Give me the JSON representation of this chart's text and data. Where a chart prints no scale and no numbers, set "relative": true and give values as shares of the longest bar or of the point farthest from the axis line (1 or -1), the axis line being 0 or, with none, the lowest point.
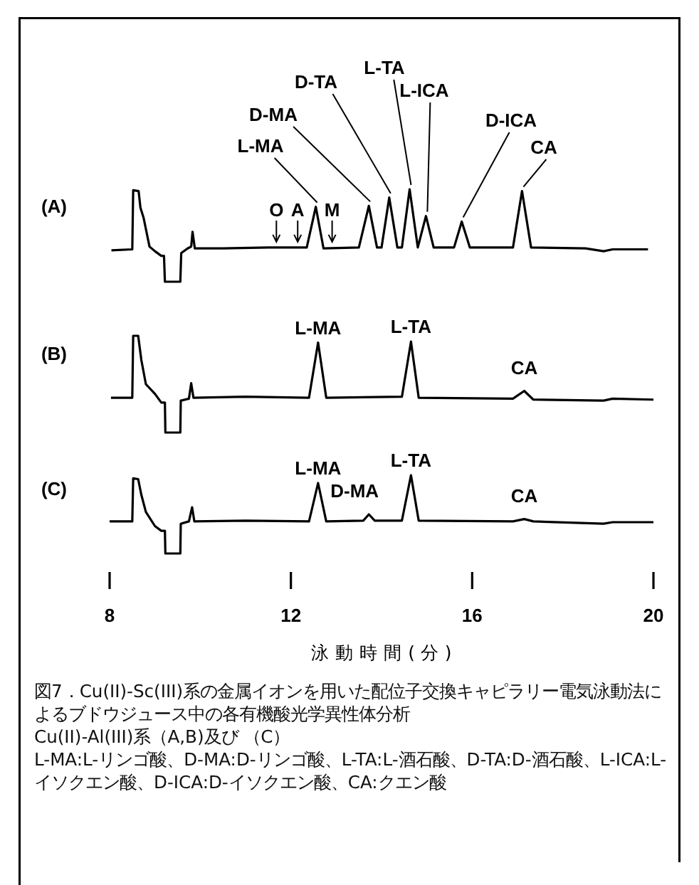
{
  "chart_data": [
    {
      "type": "line",
      "relative": true,
      "title": "(A)",
      "xlim": [
        8,
        20
      ],
      "tick_labels": false,
      "color": "#000000",
      "x": [
        8.04,
        8.5,
        8.52,
        8.64,
        8.68,
        8.75,
        8.88,
        9.0,
        9.14,
        9.2,
        9.22,
        9.56,
        9.58,
        9.72,
        9.8,
        9.83,
        9.88,
        10.5,
        11.5,
        12.35,
        12.55,
        12.72,
        13.5,
        13.72,
        13.9,
        14.0,
        14.17,
        14.35,
        14.45,
        14.62,
        14.8,
        14.98,
        15.15,
        15.6,
        15.77,
        15.95,
        16.9,
        17.1,
        17.3,
        18.5,
        18.9,
        19.1,
        19.88
      ],
      "values": [
        0.34,
        0.35,
        0.99,
        0.98,
        0.8,
        0.69,
        0.38,
        0.33,
        0.28,
        0.28,
        0,
        0,
        0.31,
        0.36,
        0.38,
        0.54,
        0.36,
        0.36,
        0.37,
        0.37,
        0.81,
        0.36,
        0.37,
        0.82,
        0.37,
        0.37,
        0.91,
        0.37,
        0.37,
        1.0,
        0.37,
        0.71,
        0.37,
        0.37,
        0.65,
        0.37,
        0.37,
        0.98,
        0.37,
        0.36,
        0.33,
        0.35,
        0.35
      ],
      "annotations": [
        {
          "text": "L-MA",
          "x": 12.55,
          "y": 0.81
        },
        {
          "text": "D-MA",
          "x": 13.72,
          "y": 0.82
        },
        {
          "text": "D-TA",
          "x": 14.17,
          "y": 0.91
        },
        {
          "text": "L-TA",
          "x": 14.62,
          "y": 1.0
        },
        {
          "text": "L-ICA",
          "x": 14.98,
          "y": 0.71
        },
        {
          "text": "D-ICA",
          "x": 15.77,
          "y": 0.65
        },
        {
          "text": "CA",
          "x": 17.1,
          "y": 0.98
        },
        {
          "text": "O",
          "x": 11.68,
          "y": 0.37
        },
        {
          "text": "A",
          "x": 12.15,
          "y": 0.37
        },
        {
          "text": "M",
          "x": 12.91,
          "y": 0.37
        }
      ]
    },
    {
      "type": "line",
      "relative": true,
      "title": "(B)",
      "xlim": [
        8,
        20
      ],
      "tick_labels": false,
      "color": "#000000",
      "x": [
        8.03,
        8.5,
        8.52,
        8.63,
        8.7,
        8.8,
        9.0,
        9.14,
        9.22,
        9.23,
        9.56,
        9.57,
        9.75,
        9.8,
        9.85,
        11.0,
        12.4,
        12.6,
        12.78,
        14.45,
        14.65,
        14.82,
        16.9,
        17.15,
        17.35,
        18.9,
        19.1,
        20.0
      ],
      "values": [
        0.36,
        0.36,
        1.0,
        1.0,
        0.75,
        0.5,
        0.4,
        0.31,
        0.31,
        0,
        0,
        0.33,
        0.35,
        0.51,
        0.36,
        0.37,
        0.36,
        0.93,
        0.36,
        0.37,
        0.94,
        0.36,
        0.35,
        0.43,
        0.34,
        0.33,
        0.35,
        0.34
      ],
      "annotations": [
        {
          "text": "L-MA",
          "x": 12.6,
          "y": 0.93
        },
        {
          "text": "L-TA",
          "x": 14.65,
          "y": 0.94
        },
        {
          "text": "CA",
          "x": 17.15,
          "y": 0.43
        }
      ]
    },
    {
      "type": "line",
      "relative": true,
      "title": "(C)",
      "xlim": [
        8,
        20
      ],
      "xticks": [
        8,
        12,
        16,
        20
      ],
      "color": "#000000",
      "xlabel": "泳 動 時 間 ( 分 )",
      "x": [
        8.0,
        8.5,
        8.52,
        8.63,
        8.7,
        8.8,
        9.0,
        9.14,
        9.22,
        9.23,
        9.56,
        9.57,
        9.75,
        9.82,
        9.87,
        11.0,
        12.4,
        12.6,
        12.78,
        13.6,
        13.72,
        13.85,
        14.45,
        14.65,
        14.82,
        16.9,
        17.15,
        17.35,
        18.9,
        19.1,
        20.0
      ],
      "values": [
        0.41,
        0.41,
        0.96,
        0.95,
        0.75,
        0.53,
        0.35,
        0.29,
        0.29,
        0,
        0,
        0.38,
        0.41,
        0.59,
        0.41,
        0.42,
        0.41,
        0.9,
        0.41,
        0.42,
        0.5,
        0.42,
        0.42,
        1.0,
        0.42,
        0.41,
        0.44,
        0.41,
        0.38,
        0.4,
        0.4
      ],
      "annotations": [
        {
          "text": "L-MA",
          "x": 12.6,
          "y": 0.9
        },
        {
          "text": "D-MA",
          "x": 13.72,
          "y": 0.5
        },
        {
          "text": "L-TA",
          "x": 14.65,
          "y": 1.0
        },
        {
          "text": "CA",
          "x": 17.15,
          "y": 0.44
        },
        "図7．Cu(II)-Sc(III)系の金属イオンを用いた配位子交換キャピラリー電気泳動法によるブドウジュース中の各有機酸光学異性体分析",
        "Cu(II)-Al(III)系（A,B)及び （C）",
        "L-MA:L-リンゴ酸、D-MA:D-リンゴ酸、L-TA:L-酒石酸、D-TA:D-酒石酸、L-ICA:L-イソクエン酸、D-ICA:D-イソクエン酸、CA:クエン酸"
      ]
    }
  ]
}
